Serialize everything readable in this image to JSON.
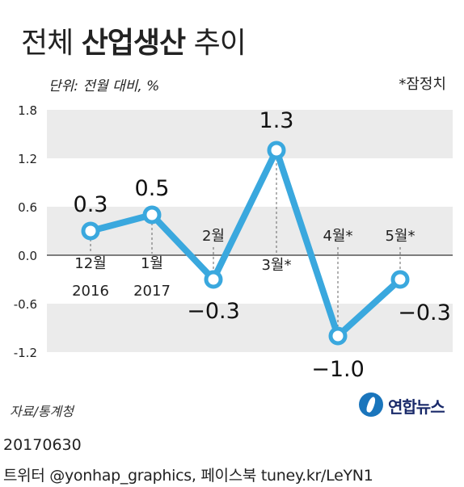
{
  "title": {
    "part1": "전체 ",
    "highlight": "산업생산",
    "part2": " 추이"
  },
  "unit_note": "단위: 전월 대비, %",
  "prelim_note": "*잠정치",
  "source": "자료/통계청",
  "logo": {
    "text": "연합뉴스"
  },
  "footer": {
    "date": "20170630",
    "credit": "트위터 @yonhap_graphics, 페이스북 tuney.kr/LeYN1"
  },
  "colors": {
    "line": "#3aa8de",
    "band": "#ebebeb",
    "zero": "#555555"
  },
  "chart_data": {
    "type": "line",
    "y_ticks": [
      "1.8",
      "1.2",
      "0.6",
      "0.0",
      "-0.6",
      "-1.2"
    ],
    "ylim": [
      -1.2,
      1.8
    ],
    "series": [
      {
        "values": [
          0.3,
          0.5,
          -0.3,
          1.3,
          -1.0,
          -0.3
        ],
        "value_labels": [
          "0.3",
          "0.5",
          "−0.3",
          "1.3",
          "−1.0",
          "−0.3"
        ]
      }
    ],
    "categories": [
      {
        "label": "12월",
        "sub": "2016"
      },
      {
        "label": "1월",
        "sub": "2017"
      },
      {
        "label": "2월",
        "sub": ""
      },
      {
        "label": "3월*",
        "sub": ""
      },
      {
        "label": "4월*",
        "sub": ""
      },
      {
        "label": "5월*",
        "sub": ""
      }
    ],
    "grid": "alternating bands"
  }
}
